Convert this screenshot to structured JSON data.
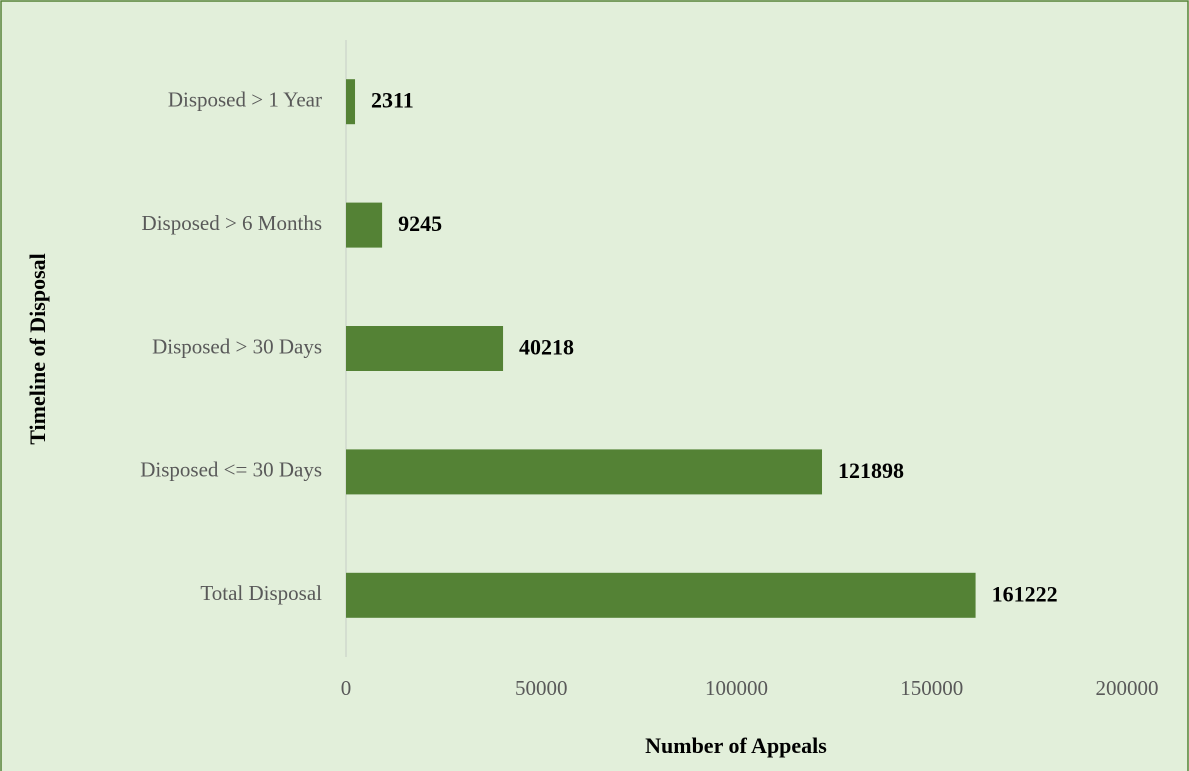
{
  "chart_data": {
    "type": "barh",
    "categories": [
      "Disposed > 1 Year",
      "Disposed > 6 Months",
      "Disposed > 30 Days",
      "Disposed <= 30 Days",
      "Total Disposal"
    ],
    "values": [
      2311,
      9245,
      40218,
      121898,
      161222
    ],
    "color": "#548235",
    "xlabel": "Number of Appeals",
    "ylabel": "Timeline of Disposal",
    "xlim": [
      0,
      200000
    ],
    "xticks": [
      0,
      50000,
      100000,
      150000,
      200000
    ],
    "grid": false
  }
}
